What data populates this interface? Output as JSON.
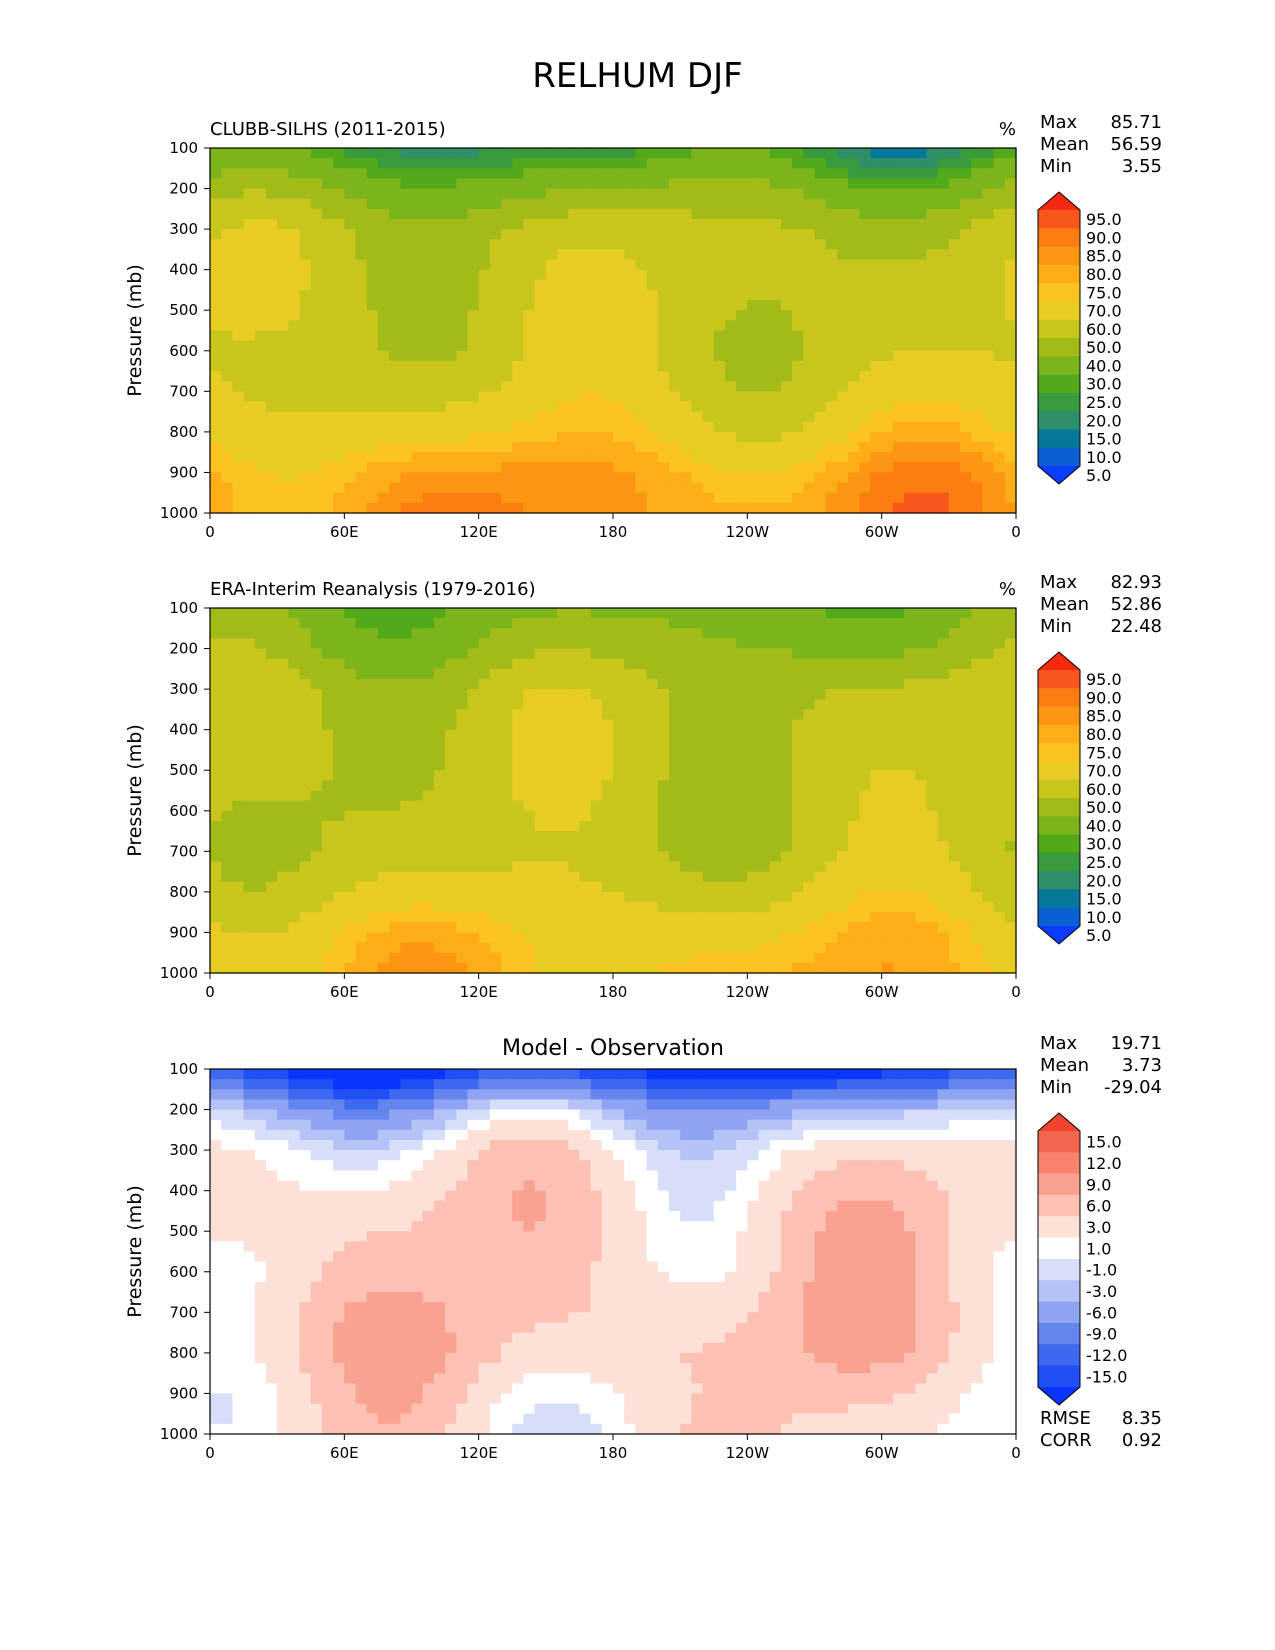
{
  "title": "RELHUM DJF",
  "colors": {
    "abs": [
      "#0a3dff",
      "#0a60d0",
      "#08789a",
      "#2f8f68",
      "#3a9a3e",
      "#52aa1a",
      "#7cb41c",
      "#a2bb18",
      "#c8c61c",
      "#e7cc22",
      "#fbc320",
      "#fdad18",
      "#fc9612",
      "#fb7c10",
      "#f8561a",
      "#f32a10"
    ],
    "diff": [
      "#0a34ff",
      "#1f4ff5",
      "#3e68f0",
      "#6585ee",
      "#8ea4f2",
      "#b4c2f5",
      "#d6defa",
      "#ffffff",
      "#fde0d8",
      "#fcc1b2",
      "#f9a292",
      "#f7836f",
      "#f3654f",
      "#ee4430"
    ]
  },
  "chart_data": [
    {
      "type": "heatmap",
      "title": "CLUBB-SILHS (2011-2015)",
      "units": "%",
      "ylabel": "Pressure (mb)",
      "x_ticks": [
        "0",
        "60E",
        "120E",
        "180",
        "120W",
        "60W",
        "0"
      ],
      "y_ticks": [
        "100",
        "200",
        "300",
        "400",
        "500",
        "600",
        "700",
        "800",
        "900",
        "1000"
      ],
      "ylim": [
        1000,
        100
      ],
      "stats": [
        {
          "label": "Max",
          "value": "85.71"
        },
        {
          "label": "Mean",
          "value": "56.59"
        },
        {
          "label": "Min",
          "value": "3.55"
        }
      ],
      "levels": [
        "95.0",
        "90.0",
        "85.0",
        "80.0",
        "75.0",
        "70.0",
        "60.0",
        "50.0",
        "40.0",
        "30.0",
        "25.0",
        "20.0",
        "15.0",
        "10.0",
        "5.0"
      ],
      "pressure": [
        100,
        200,
        300,
        400,
        500,
        600,
        700,
        800,
        900,
        1000
      ],
      "zonal_mean": [
        22,
        38,
        52,
        55,
        56,
        56,
        60,
        68,
        78,
        82
      ]
    },
    {
      "type": "heatmap",
      "title": "ERA-Interim Reanalysis (1979-2016)",
      "units": "%",
      "ylabel": "Pressure (mb)",
      "x_ticks": [
        "0",
        "60E",
        "120E",
        "180",
        "120W",
        "60W",
        "0"
      ],
      "y_ticks": [
        "100",
        "200",
        "300",
        "400",
        "500",
        "600",
        "700",
        "800",
        "900",
        "1000"
      ],
      "ylim": [
        1000,
        100
      ],
      "stats": [
        {
          "label": "Max",
          "value": "82.93"
        },
        {
          "label": "Mean",
          "value": "52.86"
        },
        {
          "label": "Min",
          "value": "22.48"
        }
      ],
      "levels": [
        "95.0",
        "90.0",
        "85.0",
        "80.0",
        "75.0",
        "70.0",
        "60.0",
        "50.0",
        "40.0",
        "30.0",
        "25.0",
        "20.0",
        "15.0",
        "10.0",
        "5.0"
      ],
      "pressure": [
        100,
        200,
        300,
        400,
        500,
        600,
        700,
        800,
        900,
        1000
      ],
      "zonal_mean": [
        35,
        42,
        52,
        54,
        54,
        53,
        54,
        60,
        70,
        74
      ]
    },
    {
      "type": "heatmap",
      "title": "Model - Observation",
      "ylabel": "Pressure (mb)",
      "x_ticks": [
        "0",
        "60E",
        "120E",
        "180",
        "120W",
        "60W",
        "0"
      ],
      "y_ticks": [
        "100",
        "200",
        "300",
        "400",
        "500",
        "600",
        "700",
        "800",
        "900",
        "1000"
      ],
      "ylim": [
        1000,
        100
      ],
      "stats": [
        {
          "label": "Max",
          "value": "19.71"
        },
        {
          "label": "Mean",
          "value": "3.73"
        },
        {
          "label": "Min",
          "value": "-29.04"
        }
      ],
      "bottom_stats": [
        {
          "label": "RMSE",
          "value": "8.35"
        },
        {
          "label": "CORR",
          "value": "0.92"
        }
      ],
      "levels": [
        "15.0",
        "12.0",
        "9.0",
        "6.0",
        "3.0",
        "1.0",
        "-1.0",
        "-3.0",
        "-6.0",
        "-9.0",
        "-12.0",
        "-15.0"
      ],
      "pressure": [
        100,
        200,
        300,
        400,
        500,
        600,
        700,
        800,
        900,
        1000
      ],
      "zonal_mean": [
        -16,
        -3,
        3,
        5,
        6,
        6,
        7,
        7,
        5,
        4
      ]
    }
  ]
}
